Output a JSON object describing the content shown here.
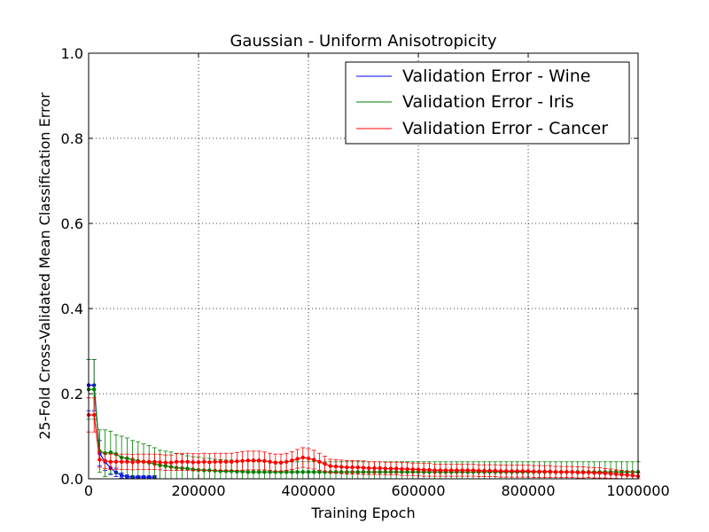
{
  "chart_data": {
    "type": "line",
    "title": "Gaussian - Uniform Anisotropicity",
    "xlabel": "Training Epoch",
    "ylabel": "25-Fold Cross-Validated Mean Classification Error",
    "xlim": [
      0,
      1000000
    ],
    "ylim": [
      0.0,
      1.0
    ],
    "xticks": [
      0,
      200000,
      400000,
      600000,
      800000,
      1000000
    ],
    "xtick_labels": [
      "0",
      "200000",
      "400000",
      "600000",
      "800000",
      "1000000"
    ],
    "yticks": [
      0.0,
      0.2,
      0.4,
      0.6,
      0.8,
      1.0
    ],
    "ytick_labels": [
      "0.0",
      "0.2",
      "0.4",
      "0.6",
      "0.8",
      "1.0"
    ],
    "grid": true,
    "legend_position": "top-right",
    "series": [
      {
        "name": "Validation Error - Wine",
        "color": "#0000ff",
        "x": [
          0,
          10000,
          20000,
          30000,
          40000,
          50000,
          60000,
          70000,
          80000,
          90000,
          100000,
          110000,
          120000
        ],
        "y": [
          0.22,
          0.22,
          0.06,
          0.04,
          0.025,
          0.015,
          0.008,
          0.005,
          0.004,
          0.004,
          0.004,
          0.004,
          0.004
        ],
        "err": [
          0.06,
          0.06,
          0.03,
          0.02,
          0.015,
          0.01,
          0.006,
          0.004,
          0.003,
          0.003,
          0.003,
          0.003,
          0.003
        ]
      },
      {
        "name": "Validation Error - Iris",
        "color": "#008000",
        "x": [
          0,
          10000,
          20000,
          30000,
          40000,
          50000,
          60000,
          70000,
          80000,
          90000,
          100000,
          110000,
          120000,
          130000,
          140000,
          150000,
          160000,
          170000,
          180000,
          190000,
          200000,
          210000,
          220000,
          230000,
          240000,
          250000,
          260000,
          270000,
          280000,
          290000,
          300000,
          310000,
          320000,
          330000,
          340000,
          350000,
          360000,
          370000,
          380000,
          390000,
          400000,
          410000,
          420000,
          430000,
          440000,
          450000,
          460000,
          470000,
          480000,
          490000,
          500000,
          510000,
          520000,
          530000,
          540000,
          550000,
          560000,
          570000,
          580000,
          590000,
          600000,
          610000,
          620000,
          630000,
          640000,
          650000,
          660000,
          670000,
          680000,
          690000,
          700000,
          710000,
          720000,
          730000,
          740000,
          750000,
          760000,
          770000,
          780000,
          790000,
          800000,
          810000,
          820000,
          830000,
          840000,
          850000,
          860000,
          870000,
          880000,
          890000,
          900000,
          910000,
          920000,
          930000,
          940000,
          950000,
          960000,
          970000,
          980000,
          990000,
          1000000
        ],
        "y": [
          0.21,
          0.21,
          0.065,
          0.06,
          0.062,
          0.058,
          0.05,
          0.048,
          0.045,
          0.042,
          0.04,
          0.038,
          0.035,
          0.032,
          0.03,
          0.028,
          0.026,
          0.025,
          0.024,
          0.022,
          0.021,
          0.02,
          0.02,
          0.019,
          0.018,
          0.018,
          0.018,
          0.017,
          0.017,
          0.016,
          0.016,
          0.016,
          0.016,
          0.016,
          0.016,
          0.016,
          0.016,
          0.016,
          0.016,
          0.016,
          0.016,
          0.016,
          0.016,
          0.016,
          0.016,
          0.016,
          0.016,
          0.016,
          0.016,
          0.016,
          0.016,
          0.016,
          0.016,
          0.016,
          0.016,
          0.016,
          0.016,
          0.016,
          0.016,
          0.016,
          0.016,
          0.016,
          0.016,
          0.016,
          0.016,
          0.016,
          0.016,
          0.016,
          0.016,
          0.016,
          0.016,
          0.016,
          0.016,
          0.016,
          0.016,
          0.016,
          0.016,
          0.016,
          0.016,
          0.016,
          0.016,
          0.016,
          0.016,
          0.016,
          0.016,
          0.016,
          0.016,
          0.016,
          0.016,
          0.016,
          0.016,
          0.016,
          0.016,
          0.016,
          0.016,
          0.016,
          0.016,
          0.016,
          0.016,
          0.016,
          0.016
        ],
        "err": [
          0.07,
          0.07,
          0.05,
          0.055,
          0.05,
          0.045,
          0.05,
          0.048,
          0.045,
          0.045,
          0.042,
          0.04,
          0.038,
          0.035,
          0.035,
          0.035,
          0.033,
          0.032,
          0.03,
          0.03,
          0.03,
          0.028,
          0.028,
          0.027,
          0.027,
          0.026,
          0.026,
          0.025,
          0.025,
          0.025,
          0.024,
          0.024,
          0.024,
          0.024,
          0.024,
          0.024,
          0.024,
          0.024,
          0.024,
          0.024,
          0.024,
          0.024,
          0.024,
          0.024,
          0.024,
          0.024,
          0.024,
          0.024,
          0.024,
          0.024,
          0.024,
          0.024,
          0.024,
          0.024,
          0.024,
          0.024,
          0.024,
          0.024,
          0.024,
          0.024,
          0.024,
          0.024,
          0.024,
          0.024,
          0.024,
          0.024,
          0.024,
          0.024,
          0.024,
          0.024,
          0.024,
          0.024,
          0.024,
          0.024,
          0.024,
          0.024,
          0.024,
          0.024,
          0.024,
          0.024,
          0.024,
          0.024,
          0.024,
          0.024,
          0.024,
          0.024,
          0.024,
          0.024,
          0.024,
          0.024,
          0.024,
          0.024,
          0.024,
          0.024,
          0.024,
          0.024,
          0.024,
          0.024,
          0.024,
          0.024,
          0.024
        ]
      },
      {
        "name": "Validation Error - Cancer",
        "color": "#ff0000",
        "x": [
          0,
          10000,
          20000,
          30000,
          40000,
          50000,
          60000,
          70000,
          80000,
          90000,
          100000,
          110000,
          120000,
          130000,
          140000,
          150000,
          160000,
          170000,
          180000,
          190000,
          200000,
          210000,
          220000,
          230000,
          240000,
          250000,
          260000,
          270000,
          280000,
          290000,
          300000,
          310000,
          320000,
          330000,
          340000,
          350000,
          360000,
          370000,
          380000,
          390000,
          400000,
          410000,
          420000,
          430000,
          440000,
          450000,
          460000,
          470000,
          480000,
          490000,
          500000,
          510000,
          520000,
          530000,
          540000,
          550000,
          560000,
          570000,
          580000,
          590000,
          600000,
          610000,
          620000,
          630000,
          640000,
          650000,
          660000,
          670000,
          680000,
          690000,
          700000,
          710000,
          720000,
          730000,
          740000,
          750000,
          760000,
          770000,
          780000,
          790000,
          800000,
          810000,
          820000,
          830000,
          840000,
          850000,
          860000,
          870000,
          880000,
          890000,
          900000,
          910000,
          920000,
          930000,
          940000,
          950000,
          960000,
          970000,
          980000,
          990000,
          1000000
        ],
        "y": [
          0.15,
          0.15,
          0.045,
          0.042,
          0.04,
          0.04,
          0.04,
          0.04,
          0.039,
          0.04,
          0.04,
          0.04,
          0.04,
          0.039,
          0.038,
          0.038,
          0.04,
          0.04,
          0.04,
          0.039,
          0.039,
          0.04,
          0.039,
          0.04,
          0.04,
          0.04,
          0.04,
          0.041,
          0.042,
          0.043,
          0.043,
          0.043,
          0.042,
          0.04,
          0.038,
          0.038,
          0.04,
          0.043,
          0.047,
          0.05,
          0.048,
          0.045,
          0.04,
          0.035,
          0.03,
          0.029,
          0.028,
          0.027,
          0.027,
          0.027,
          0.026,
          0.025,
          0.025,
          0.025,
          0.024,
          0.024,
          0.024,
          0.023,
          0.023,
          0.022,
          0.022,
          0.021,
          0.021,
          0.02,
          0.02,
          0.02,
          0.02,
          0.02,
          0.02,
          0.02,
          0.02,
          0.019,
          0.019,
          0.019,
          0.019,
          0.018,
          0.018,
          0.018,
          0.018,
          0.018,
          0.018,
          0.017,
          0.017,
          0.017,
          0.017,
          0.016,
          0.016,
          0.016,
          0.016,
          0.015,
          0.015,
          0.015,
          0.014,
          0.014,
          0.013,
          0.012,
          0.011,
          0.01,
          0.009,
          0.008,
          0.006
        ],
        "err": [
          0.04,
          0.04,
          0.018,
          0.018,
          0.018,
          0.018,
          0.018,
          0.018,
          0.018,
          0.018,
          0.018,
          0.018,
          0.018,
          0.018,
          0.018,
          0.018,
          0.02,
          0.02,
          0.02,
          0.02,
          0.02,
          0.02,
          0.02,
          0.02,
          0.02,
          0.02,
          0.02,
          0.021,
          0.022,
          0.022,
          0.022,
          0.022,
          0.021,
          0.02,
          0.02,
          0.02,
          0.02,
          0.021,
          0.022,
          0.023,
          0.023,
          0.022,
          0.02,
          0.018,
          0.016,
          0.016,
          0.016,
          0.016,
          0.016,
          0.016,
          0.016,
          0.015,
          0.015,
          0.015,
          0.015,
          0.015,
          0.015,
          0.015,
          0.015,
          0.015,
          0.015,
          0.015,
          0.015,
          0.014,
          0.014,
          0.014,
          0.014,
          0.014,
          0.014,
          0.014,
          0.014,
          0.014,
          0.014,
          0.014,
          0.014,
          0.014,
          0.014,
          0.014,
          0.014,
          0.014,
          0.014,
          0.014,
          0.014,
          0.014,
          0.014,
          0.013,
          0.013,
          0.013,
          0.013,
          0.013,
          0.013,
          0.012,
          0.012,
          0.012,
          0.011,
          0.011,
          0.01,
          0.01,
          0.009,
          0.009,
          0.008
        ]
      }
    ]
  }
}
